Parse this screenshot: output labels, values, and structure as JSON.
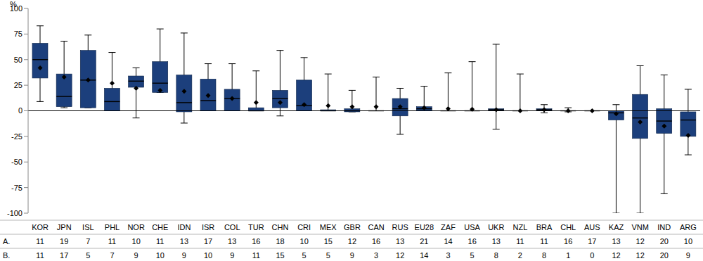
{
  "chart_data": {
    "type": "box",
    "y_label": "%",
    "categories": [
      "KOR",
      "JPN",
      "ISL",
      "PHL",
      "NOR",
      "CHE",
      "IDN",
      "ISR",
      "COL",
      "TUR",
      "CHN",
      "CRI",
      "MEX",
      "GBR",
      "CAN",
      "RUS",
      "EU28",
      "ZAF",
      "USA",
      "UKR",
      "NZL",
      "BRA",
      "CHL",
      "AUS",
      "KAZ",
      "VNM",
      "IND",
      "ARG"
    ],
    "min": [
      9,
      3,
      3,
      0,
      -7,
      18,
      -12,
      0,
      0,
      0,
      -5,
      0,
      0,
      -1,
      0,
      -23,
      0,
      0,
      0,
      -18,
      0,
      -2,
      -1,
      0,
      -100,
      -100,
      -81,
      -43
    ],
    "q1": [
      32,
      4,
      3,
      0,
      23,
      18,
      -1,
      0,
      0,
      0,
      3,
      0,
      0,
      -1,
      0,
      -5,
      0,
      0,
      0,
      0,
      0,
      0,
      0,
      0,
      -9,
      -27,
      -22,
      -25
    ],
    "median": [
      50,
      14,
      30,
      9,
      29,
      27,
      8,
      10,
      12,
      0,
      12,
      5,
      0,
      0,
      0,
      2,
      2,
      0,
      0,
      1,
      0,
      1,
      0,
      0,
      -2,
      -7,
      -10,
      -9
    ],
    "q3": [
      66,
      36,
      59,
      22,
      34,
      48,
      35,
      31,
      21,
      3,
      20,
      30,
      1,
      2,
      0,
      12,
      4,
      0,
      0,
      2,
      0,
      2,
      0,
      0,
      0,
      16,
      2,
      -1
    ],
    "max": [
      83,
      68,
      74,
      57,
      42,
      80,
      76,
      46,
      46,
      39,
      59,
      52,
      36,
      20,
      33,
      22,
      24,
      37,
      48,
      65,
      36,
      6,
      3,
      0,
      6,
      44,
      35,
      21
    ],
    "mean": [
      42,
      33,
      30,
      27,
      22,
      20,
      19,
      15,
      12,
      8,
      8,
      6,
      5,
      4,
      4,
      4,
      3,
      2,
      1.5,
      1,
      0,
      1,
      0,
      0,
      -3,
      -11,
      -15,
      -24
    ],
    "color": "#1c3f7c",
    "ylim": [
      -100,
      100
    ],
    "yticks": [
      -100,
      -75,
      -50,
      -25,
      0,
      25,
      50,
      75,
      100
    ],
    "grid": false,
    "table": [
      {
        "label": "A.",
        "values": [
          11,
          19,
          7,
          11,
          10,
          11,
          13,
          17,
          13,
          16,
          18,
          10,
          15,
          12,
          16,
          13,
          21,
          14,
          16,
          13,
          11,
          11,
          16,
          17,
          13,
          12,
          20,
          10
        ]
      },
      {
        "label": "B.",
        "values": [
          11,
          17,
          5,
          7,
          9,
          10,
          9,
          10,
          9,
          11,
          15,
          5,
          5,
          9,
          3,
          12,
          14,
          3,
          5,
          8,
          2,
          8,
          1,
          0,
          12,
          12,
          20,
          9
        ]
      }
    ]
  }
}
